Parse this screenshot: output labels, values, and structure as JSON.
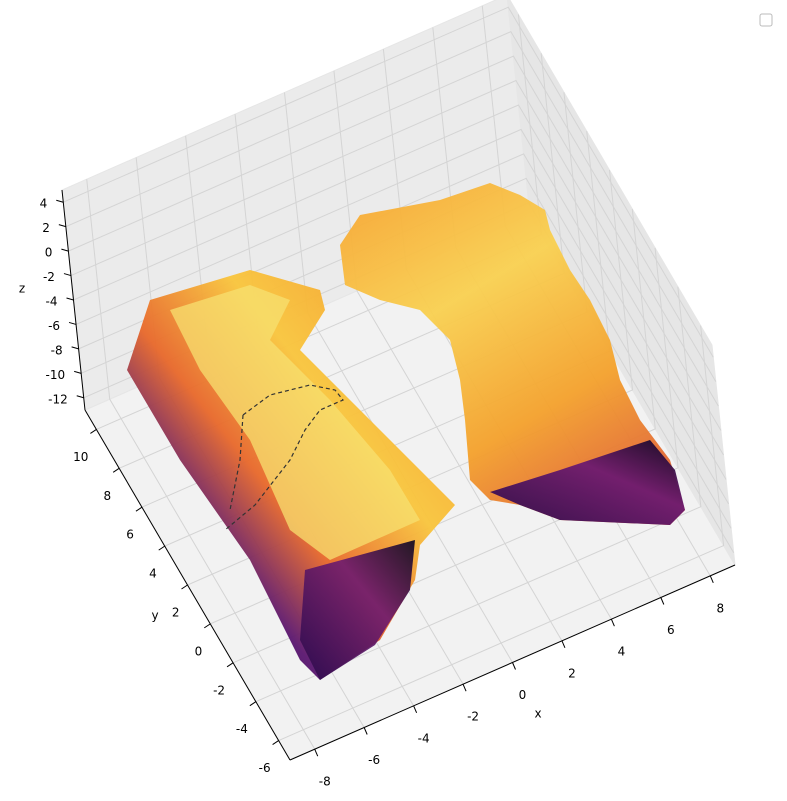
{
  "chart_data": {
    "type": "surface3d",
    "xlabel": "x",
    "ylabel": "y",
    "zlabel": "z",
    "xlim": [
      -9,
      9
    ],
    "ylim": [
      -7,
      11
    ],
    "zlim": [
      -13,
      5
    ],
    "xticks": [
      -8,
      -6,
      -4,
      -2,
      0,
      2,
      4,
      6,
      8
    ],
    "yticks": [
      -6,
      -4,
      -2,
      0,
      2,
      4,
      6,
      8,
      10
    ],
    "zticks": [
      -12,
      -10,
      -8,
      -6,
      -4,
      -2,
      0,
      2,
      4
    ],
    "grid": true
  }
}
